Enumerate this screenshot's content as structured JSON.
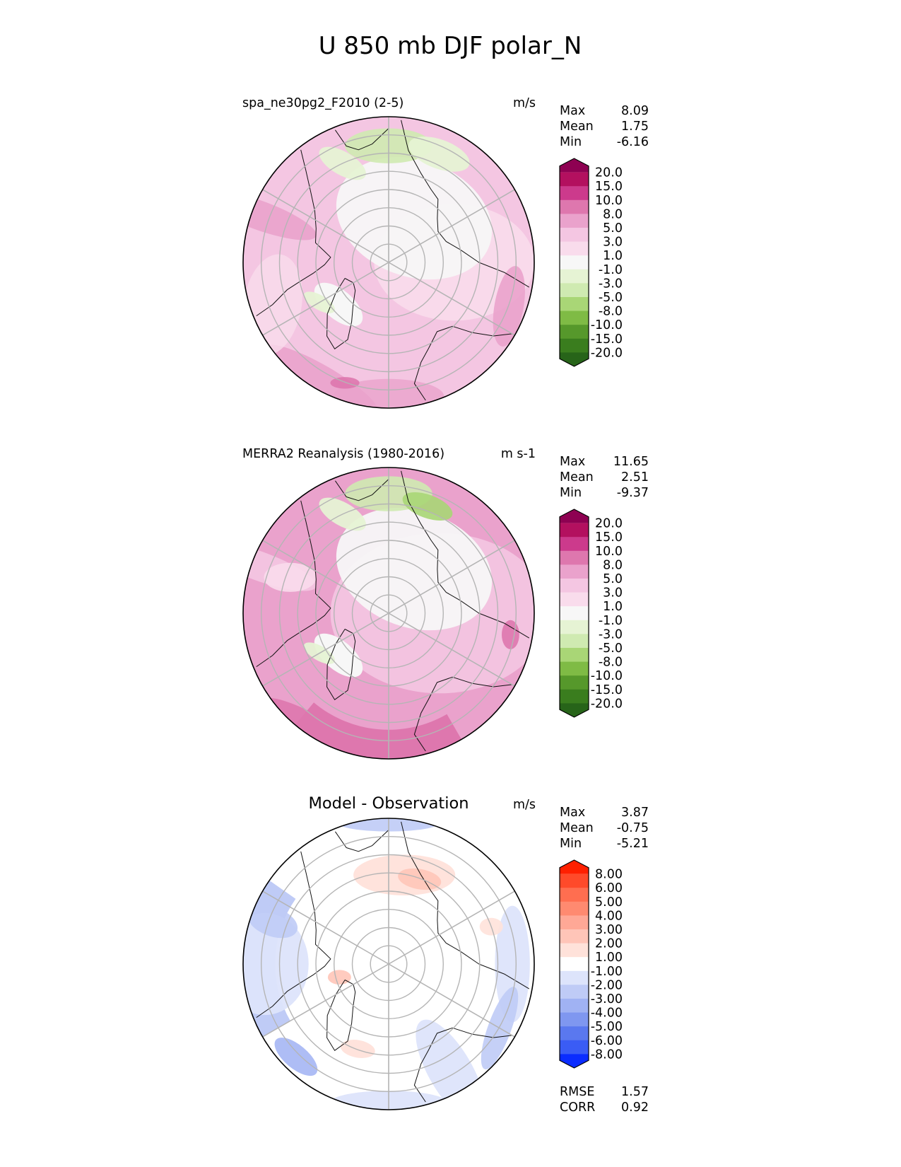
{
  "figure": {
    "title": "U 850 mb DJF polar_N"
  },
  "panels": [
    {
      "left_title": "spa_ne30pg2_F2010 (2-5)",
      "center_title": "",
      "units": "m/s",
      "stats": [
        {
          "label": "Max",
          "value": "8.09"
        },
        {
          "label": "Mean",
          "value": "1.75"
        },
        {
          "label": "Min",
          "value": "-6.16"
        }
      ],
      "extra_stats": [],
      "colorbar": "cb_model"
    },
    {
      "left_title": "MERRA2 Reanalysis (1980-2016)",
      "center_title": "",
      "units": "m s-1",
      "stats": [
        {
          "label": "Max",
          "value": "11.65"
        },
        {
          "label": "Mean",
          "value": "2.51"
        },
        {
          "label": "Min",
          "value": "-9.37"
        }
      ],
      "extra_stats": [],
      "colorbar": "cb_model"
    },
    {
      "left_title": "",
      "center_title": "Model - Observation",
      "units": "m/s",
      "stats": [
        {
          "label": "Max",
          "value": "3.87"
        },
        {
          "label": "Mean",
          "value": "-0.75"
        },
        {
          "label": "Min",
          "value": "-5.21"
        }
      ],
      "extra_stats": [
        {
          "label": "RMSE",
          "value": "1.57"
        },
        {
          "label": "CORR",
          "value": "0.92"
        }
      ],
      "colorbar": "cb_diff"
    }
  ],
  "colorbars": {
    "cb_model": {
      "levels": [
        "20.0",
        "15.0",
        "10.0",
        "8.0",
        "5.0",
        "3.0",
        "1.0",
        "-1.0",
        "-3.0",
        "-5.0",
        "-8.0",
        "-10.0",
        "-15.0",
        "-20.0"
      ],
      "colors": [
        "#8e0152",
        "#b3105f",
        "#cc3a8c",
        "#de77ae",
        "#eaa2cc",
        "#f4c6e2",
        "#f9dcec",
        "#f7f7f7",
        "#e6f3d4",
        "#cfeab1",
        "#a9d676",
        "#7fbb45",
        "#56982b",
        "#3a7d1e",
        "#276419"
      ]
    },
    "cb_diff": {
      "levels": [
        "8.00",
        "6.00",
        "5.00",
        "4.00",
        "3.00",
        "2.00",
        "1.00",
        "-1.00",
        "-2.00",
        "-3.00",
        "-4.00",
        "-5.00",
        "-6.00",
        "-8.00"
      ],
      "colors": [
        "#ff2000",
        "#ff4a2a",
        "#ff6e50",
        "#ff8a70",
        "#ffa896",
        "#ffc5b8",
        "#ffe2da",
        "#ffffff",
        "#dde4fb",
        "#bfcbf6",
        "#a0b2f3",
        "#7f97f0",
        "#5a78ef",
        "#3a5cf5",
        "#0a2cff"
      ]
    }
  },
  "chart_data": [
    {
      "type": "heatmap",
      "projection": "north polar stereographic",
      "title": "spa_ne30pg2_F2010 (2-5)",
      "variable": "U 850 mb DJF",
      "units": "m/s",
      "stats": {
        "max": 8.09,
        "mean": 1.75,
        "min": -6.16
      },
      "contour_levels": [
        -20,
        -15,
        -10,
        -8,
        -5,
        -3,
        -1,
        1,
        3,
        5,
        8,
        10,
        15,
        20
      ]
    },
    {
      "type": "heatmap",
      "projection": "north polar stereographic",
      "title": "MERRA2 Reanalysis (1980-2016)",
      "variable": "U 850 mb DJF",
      "units": "m s-1",
      "stats": {
        "max": 11.65,
        "mean": 2.51,
        "min": -9.37
      },
      "contour_levels": [
        -20,
        -15,
        -10,
        -8,
        -5,
        -3,
        -1,
        1,
        3,
        5,
        8,
        10,
        15,
        20
      ]
    },
    {
      "type": "heatmap",
      "projection": "north polar stereographic",
      "title": "Model - Observation",
      "variable": "U 850 mb DJF difference",
      "units": "m/s",
      "stats": {
        "max": 3.87,
        "mean": -0.75,
        "min": -5.21,
        "rmse": 1.57,
        "corr": 0.92
      },
      "contour_levels": [
        -8,
        -6,
        -5,
        -4,
        -3,
        -2,
        -1,
        1,
        2,
        3,
        4,
        5,
        6,
        8
      ]
    }
  ]
}
